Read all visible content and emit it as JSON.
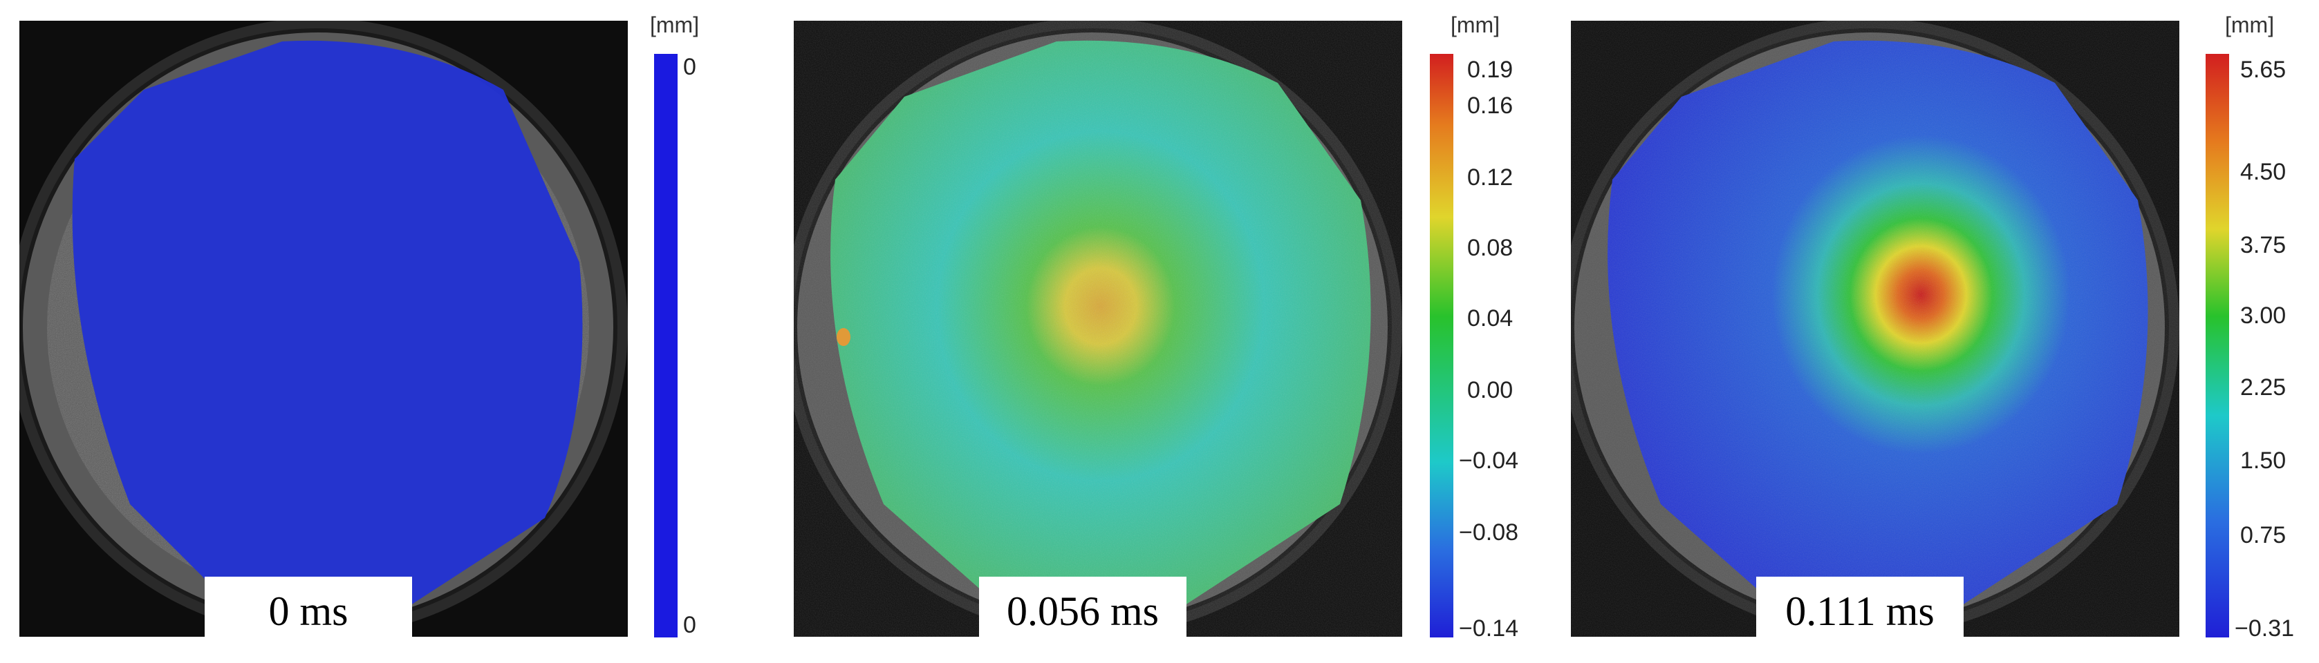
{
  "panels": [
    {
      "time_label": "0 ms",
      "unit": "[mm]",
      "ticks": [
        "0",
        "0"
      ]
    },
    {
      "time_label": "0.056 ms",
      "unit": "[mm]",
      "ticks": [
        "0.19",
        "0.16",
        "0.12",
        "0.08",
        "0.04",
        "0.00",
        "−0.04",
        "−0.08",
        "−0.14"
      ]
    },
    {
      "time_label": "0.111 ms",
      "unit": "[mm]",
      "ticks": [
        "5.65",
        "4.50",
        "3.75",
        "3.00",
        "2.25",
        "1.50",
        "0.75",
        "−0.31"
      ]
    }
  ],
  "colors": {
    "blue": "#1f2fd6",
    "green": "#3fc24a",
    "cyan": "#35c3c8",
    "yellow": "#e2d23a",
    "red": "#d8251e"
  }
}
